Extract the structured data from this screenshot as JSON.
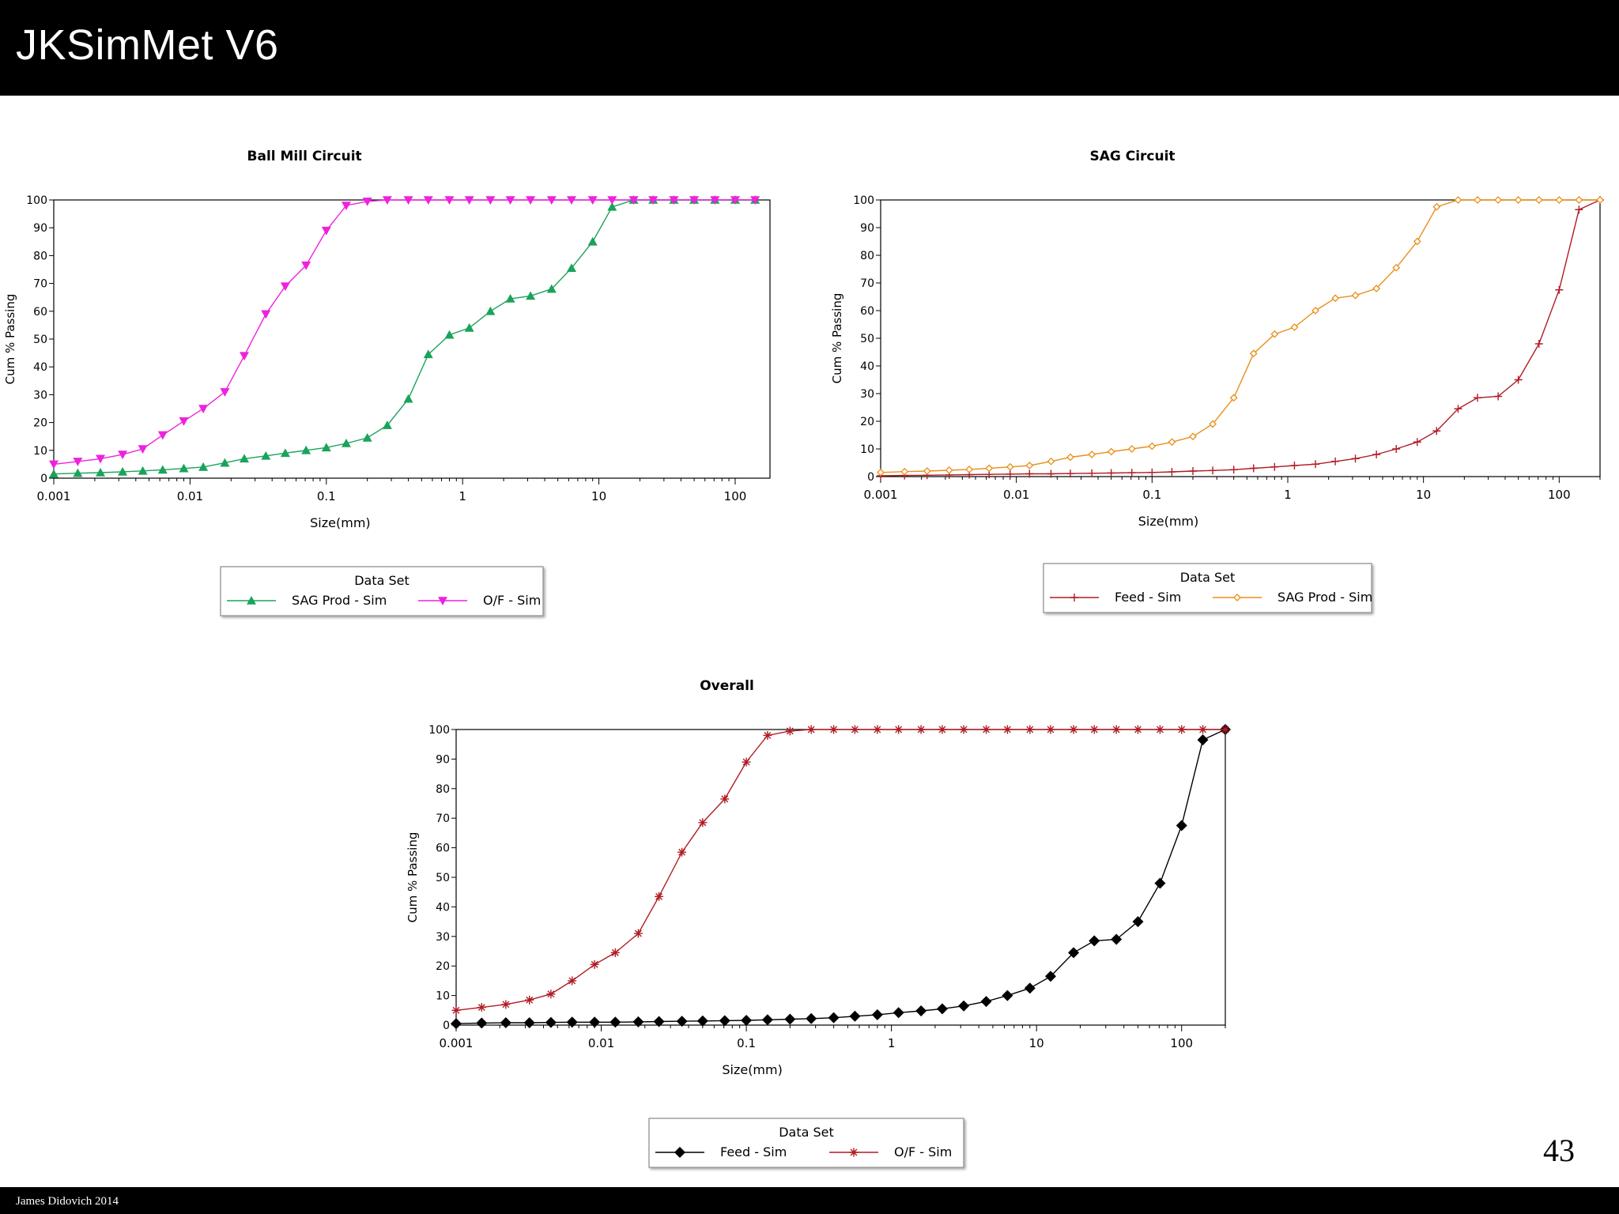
{
  "slide": {
    "title": "JKSimMet V6",
    "page_number": "43",
    "footer": "James Didovich 2014"
  },
  "chart_data": [
    {
      "type": "line",
      "title": "Ball Mill Circuit",
      "xlabel": "Size(mm)",
      "ylabel": "Cum % Passing",
      "xscale": "log",
      "xlim": [
        0.001,
        180
      ],
      "ylim": [
        0,
        100
      ],
      "xticks": [
        "0.001",
        "0.01",
        "0.1",
        "1",
        "10",
        "100"
      ],
      "yticks": [
        "0",
        "10",
        "20",
        "30",
        "40",
        "50",
        "60",
        "70",
        "80",
        "90",
        "100"
      ],
      "legend_title": "Data Set",
      "legend_position": "bottom",
      "series": [
        {
          "name": "SAG Prod - Sim",
          "color": "#1aa35a",
          "marker": "triangle-up",
          "x": [
            0.001,
            0.0015,
            0.0022,
            0.0032,
            0.0045,
            0.0063,
            0.009,
            0.0125,
            0.018,
            0.025,
            0.036,
            0.05,
            0.071,
            0.1,
            0.14,
            0.2,
            0.28,
            0.4,
            0.56,
            0.8,
            1.12,
            1.6,
            2.24,
            3.15,
            4.5,
            6.3,
            9,
            12.5,
            18,
            25,
            35.5,
            50,
            71,
            100,
            140
          ],
          "y": [
            1.5,
            1.8,
            2,
            2.3,
            2.6,
            3,
            3.5,
            4,
            5.5,
            7,
            8,
            9,
            10,
            11,
            12.5,
            14.5,
            19,
            28.5,
            44.5,
            51.5,
            54,
            60,
            64.5,
            65.5,
            68,
            75.5,
            85,
            97.5,
            100,
            100,
            100,
            100,
            100,
            100,
            100
          ]
        },
        {
          "name": "O/F - Sim",
          "color": "#ee22dd",
          "marker": "triangle-down",
          "x": [
            0.001,
            0.0015,
            0.0022,
            0.0032,
            0.0045,
            0.0063,
            0.009,
            0.0125,
            0.018,
            0.025,
            0.036,
            0.05,
            0.071,
            0.1,
            0.14,
            0.2,
            0.28,
            0.4,
            0.56,
            0.8,
            1.12,
            1.6,
            2.24,
            3.15,
            4.5,
            6.3,
            9,
            12.5,
            18,
            25,
            35.5,
            50,
            71,
            100,
            140
          ],
          "y": [
            5,
            6,
            7,
            8.5,
            10.5,
            15.5,
            20.5,
            25,
            31,
            44,
            59,
            69,
            76.5,
            89,
            98,
            99.5,
            100,
            100,
            100,
            100,
            100,
            100,
            100,
            100,
            100,
            100,
            100,
            100,
            100,
            100,
            100,
            100,
            100,
            100,
            100
          ]
        }
      ]
    },
    {
      "type": "line",
      "title": "SAG Circuit",
      "xlabel": "Size(mm)",
      "ylabel": "Cum % Passing",
      "xscale": "log",
      "xlim": [
        0.001,
        200
      ],
      "ylim": [
        0,
        100
      ],
      "xticks": [
        "0.001",
        "0.01",
        "0.1",
        "1",
        "10",
        "100"
      ],
      "yticks": [
        "0",
        "10",
        "20",
        "30",
        "40",
        "50",
        "60",
        "70",
        "80",
        "90",
        "100"
      ],
      "legend_title": "Data Set",
      "legend_position": "bottom",
      "series": [
        {
          "name": "Feed - Sim",
          "color": "#b01c24",
          "marker": "plus",
          "x": [
            0.001,
            0.0015,
            0.0022,
            0.0032,
            0.0045,
            0.0063,
            0.009,
            0.0125,
            0.018,
            0.025,
            0.036,
            0.05,
            0.071,
            0.1,
            0.14,
            0.2,
            0.28,
            0.4,
            0.56,
            0.8,
            1.12,
            1.6,
            2.24,
            3.15,
            4.5,
            6.3,
            9,
            12.5,
            18,
            25,
            35.5,
            50,
            71,
            100,
            140,
            200
          ],
          "y": [
            0.3,
            0.4,
            0.5,
            0.6,
            0.7,
            0.8,
            0.9,
            1,
            1,
            1.1,
            1.2,
            1.3,
            1.4,
            1.5,
            1.7,
            2,
            2.2,
            2.5,
            3,
            3.5,
            4,
            4.5,
            5.5,
            6.5,
            8,
            10,
            12.5,
            16.5,
            24.5,
            28.5,
            29,
            35,
            48,
            67.5,
            96.5,
            100
          ]
        },
        {
          "name": "SAG Prod - Sim",
          "color": "#e8901a",
          "marker": "diamond-open",
          "x": [
            0.001,
            0.0015,
            0.0022,
            0.0032,
            0.0045,
            0.0063,
            0.009,
            0.0125,
            0.018,
            0.025,
            0.036,
            0.05,
            0.071,
            0.1,
            0.14,
            0.2,
            0.28,
            0.4,
            0.56,
            0.8,
            1.12,
            1.6,
            2.24,
            3.15,
            4.5,
            6.3,
            9,
            12.5,
            18,
            25,
            35.5,
            50,
            71,
            100,
            140,
            200
          ],
          "y": [
            1.5,
            1.8,
            2,
            2.3,
            2.6,
            3,
            3.5,
            4,
            5.5,
            7,
            8,
            9,
            10,
            11,
            12.5,
            14.5,
            19,
            28.5,
            44.5,
            51.5,
            54,
            60,
            64.5,
            65.5,
            68,
            75.5,
            85,
            97.5,
            100,
            100,
            100,
            100,
            100,
            100,
            100,
            100
          ]
        }
      ]
    },
    {
      "type": "line",
      "title": "Overall",
      "xlabel": "Size(mm)",
      "ylabel": "Cum % Passing",
      "xscale": "log",
      "xlim": [
        0.001,
        200
      ],
      "ylim": [
        0,
        100
      ],
      "xticks": [
        "0.001",
        "0.01",
        "0.1",
        "1",
        "10",
        "100"
      ],
      "yticks": [
        "0",
        "10",
        "20",
        "30",
        "40",
        "50",
        "60",
        "70",
        "80",
        "90",
        "100"
      ],
      "legend_title": "Data Set",
      "legend_position": "bottom",
      "series": [
        {
          "name": "Feed - Sim",
          "color": "#000000",
          "marker": "diamond",
          "x": [
            0.001,
            0.0015,
            0.0022,
            0.0032,
            0.0045,
            0.0063,
            0.009,
            0.0125,
            0.018,
            0.025,
            0.036,
            0.05,
            0.071,
            0.1,
            0.14,
            0.2,
            0.28,
            0.4,
            0.56,
            0.8,
            1.12,
            1.6,
            2.24,
            3.15,
            4.5,
            6.3,
            9,
            12.5,
            18,
            25,
            35.5,
            50,
            71,
            100,
            140,
            200
          ],
          "y": [
            0.5,
            0.7,
            0.8,
            0.8,
            0.9,
            1,
            1,
            1,
            1.1,
            1.2,
            1.3,
            1.4,
            1.5,
            1.6,
            1.8,
            2,
            2.2,
            2.5,
            3,
            3.5,
            4.2,
            4.8,
            5.5,
            6.5,
            8,
            10,
            12.5,
            16.5,
            24.5,
            28.5,
            29,
            35,
            48,
            67.5,
            96.5,
            100
          ]
        },
        {
          "name": "O/F - Sim",
          "color": "#b01c24",
          "marker": "asterisk",
          "x": [
            0.001,
            0.0015,
            0.0022,
            0.0032,
            0.0045,
            0.0063,
            0.009,
            0.0125,
            0.018,
            0.025,
            0.036,
            0.05,
            0.071,
            0.1,
            0.14,
            0.2,
            0.28,
            0.4,
            0.56,
            0.8,
            1.12,
            1.6,
            2.24,
            3.15,
            4.5,
            6.3,
            9,
            12.5,
            18,
            25,
            35.5,
            50,
            71,
            100,
            140,
            200
          ],
          "y": [
            5,
            6,
            7,
            8.5,
            10.5,
            15,
            20.5,
            24.5,
            31,
            43.5,
            58.5,
            68.5,
            76.5,
            89,
            98,
            99.5,
            100,
            100,
            100,
            100,
            100,
            100,
            100,
            100,
            100,
            100,
            100,
            100,
            100,
            100,
            100,
            100,
            100,
            100,
            100,
            100
          ]
        }
      ]
    }
  ]
}
